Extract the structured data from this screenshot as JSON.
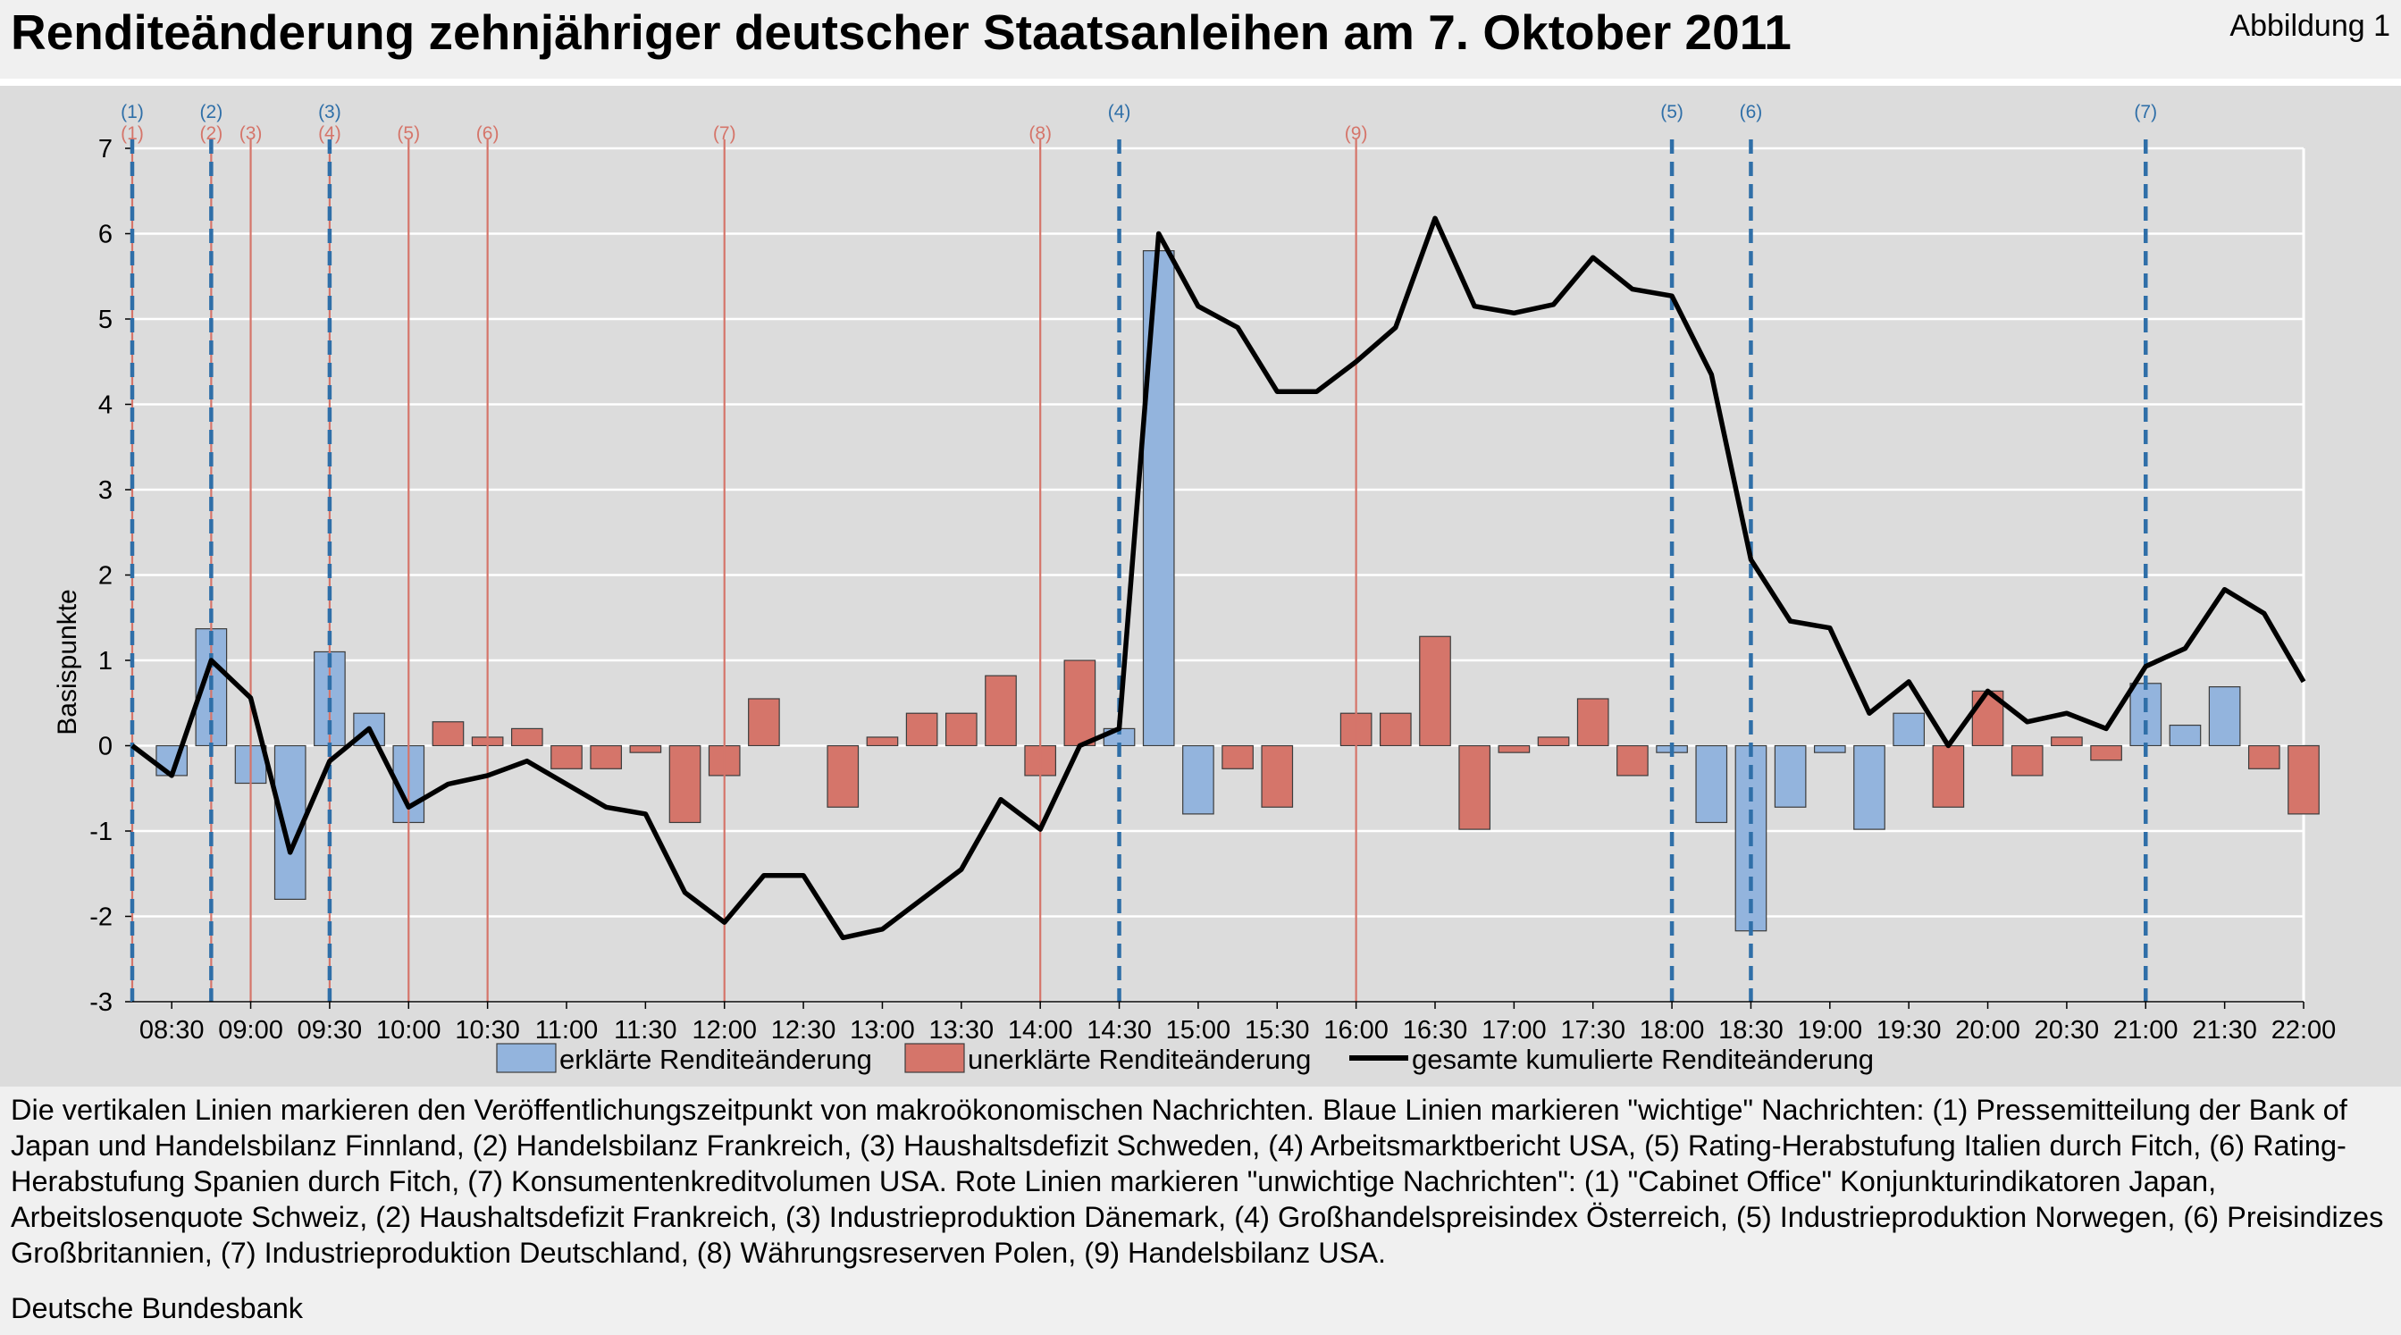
{
  "header": {
    "title": "Renditeänderung zehnjähriger deutscher Staatsanleihen am 7. Oktober 2011",
    "figure_label": "Abbildung 1"
  },
  "chart_data": {
    "type": "bar",
    "title": "",
    "xlabel": "",
    "ylabel": "Basispunkte",
    "ylim": [
      -3,
      7
    ],
    "yticks": [
      "-3",
      "-2",
      "-1",
      "0",
      "1",
      "2",
      "3",
      "4",
      "5",
      "6",
      "7"
    ],
    "grid": true,
    "legend_position": "bottom",
    "x_tick_labels": [
      "08:30",
      "09:00",
      "09:30",
      "10:00",
      "10:30",
      "11:00",
      "11:30",
      "12:00",
      "12:30",
      "13:00",
      "13:30",
      "14:00",
      "14:30",
      "15:00",
      "15:30",
      "16:00",
      "16:30",
      "17:00",
      "17:30",
      "18:00",
      "18:30",
      "19:00",
      "19:30",
      "20:00",
      "20:30",
      "21:00",
      "21:30",
      "22:00"
    ],
    "x": [
      "08:15",
      "08:30",
      "08:45",
      "09:00",
      "09:15",
      "09:30",
      "09:45",
      "10:00",
      "10:15",
      "10:30",
      "10:45",
      "11:00",
      "11:15",
      "11:30",
      "11:45",
      "12:00",
      "12:15",
      "12:30",
      "12:45",
      "13:00",
      "13:15",
      "13:30",
      "13:45",
      "14:00",
      "14:15",
      "14:30",
      "14:45",
      "15:00",
      "15:15",
      "15:30",
      "15:45",
      "16:00",
      "16:15",
      "16:30",
      "16:45",
      "17:00",
      "17:15",
      "17:30",
      "17:45",
      "18:00",
      "18:15",
      "18:30",
      "18:45",
      "19:00",
      "19:15",
      "19:30",
      "19:45",
      "20:00",
      "20:15",
      "20:30",
      "20:45",
      "21:00",
      "21:15",
      "21:30",
      "21:45",
      "22:00"
    ],
    "series": [
      {
        "name": "erklärte Renditeänderung",
        "color": "#93b4dd",
        "values": [
          0,
          -0.35,
          1.37,
          -0.44,
          -1.8,
          1.1,
          0.38,
          -0.9,
          0,
          0,
          0,
          0,
          0,
          0,
          0,
          0,
          0,
          0,
          0,
          0,
          0,
          0,
          0,
          0,
          0,
          0.2,
          5.8,
          -0.8,
          0,
          0,
          0,
          0,
          0,
          0,
          0,
          0,
          0,
          0,
          0,
          -0.08,
          -0.9,
          -2.17,
          -0.72,
          -0.08,
          -0.98,
          0.38,
          0,
          0,
          0,
          0,
          0,
          0.73,
          0.24,
          0.69,
          0,
          0
        ]
      },
      {
        "name": "unerklärte Renditeänderung",
        "color": "#d5756a",
        "values": [
          0,
          0,
          0,
          0,
          0,
          0,
          0,
          0,
          0.28,
          0.1,
          0.2,
          -0.27,
          -0.27,
          -0.08,
          -0.9,
          -0.35,
          0.55,
          0,
          -0.72,
          0.1,
          0.38,
          0.38,
          0.82,
          -0.35,
          1.0,
          0,
          0,
          0,
          -0.27,
          -0.72,
          0,
          0.38,
          0.38,
          1.28,
          -0.98,
          -0.08,
          0.1,
          0.55,
          -0.35,
          0,
          0,
          0,
          0,
          0,
          0,
          0,
          -0.72,
          0.64,
          -0.35,
          0.1,
          -0.17,
          0,
          0,
          0,
          -0.27,
          -0.8
        ]
      },
      {
        "name": "gesamte kumulierte Renditeänderung",
        "color": "#000000",
        "values": [
          0,
          -0.35,
          1.0,
          0.56,
          -1.25,
          -0.18,
          0.2,
          -0.72,
          -0.45,
          -0.35,
          -0.18,
          -0.45,
          -0.72,
          -0.8,
          -1.72,
          -2.07,
          -1.52,
          -1.52,
          -2.25,
          -2.15,
          -1.8,
          -1.45,
          -0.63,
          -0.98,
          0,
          0.2,
          6.0,
          5.15,
          4.9,
          4.15,
          4.15,
          4.5,
          4.9,
          6.18,
          5.15,
          5.07,
          5.17,
          5.72,
          5.35,
          5.27,
          4.35,
          2.18,
          1.46,
          1.38,
          0.38,
          0.75,
          0,
          0.64,
          0.28,
          0.38,
          0.2,
          0.93,
          1.14,
          1.83,
          1.55,
          0.75
        ]
      }
    ],
    "news_lines": {
      "blue": [
        {
          "label": "(1)",
          "time": "08:15"
        },
        {
          "label": "(2)",
          "time": "08:45"
        },
        {
          "label": "(3)",
          "time": "09:30"
        },
        {
          "label": "(4)",
          "time": "14:30"
        },
        {
          "label": "(5)",
          "time": "18:00"
        },
        {
          "label": "(6)",
          "time": "18:30"
        },
        {
          "label": "(7)",
          "time": "21:00"
        }
      ],
      "red": [
        {
          "label": "(1)",
          "time": "08:15"
        },
        {
          "label": "(2)",
          "time": "08:45"
        },
        {
          "label": "(3)",
          "time": "09:00"
        },
        {
          "label": "(4)",
          "time": "09:30"
        },
        {
          "label": "(5)",
          "time": "10:00"
        },
        {
          "label": "(6)",
          "time": "10:30"
        },
        {
          "label": "(7)",
          "time": "12:00"
        },
        {
          "label": "(8)",
          "time": "14:00"
        },
        {
          "label": "(9)",
          "time": "16:00"
        }
      ]
    }
  },
  "caption": {
    "text": "Die vertikalen Linien markieren den Veröffentlichungszeitpunkt von makroökonomischen Nachrichten. Blaue Linien markieren \"wichtige\" Nachrichten: (1) Pressemitteilung der Bank of Japan und Handelsbilanz Finnland, (2) Handelsbilanz Frankreich, (3) Haushaltsdefizit Schweden, (4) Arbeitsmarktbericht USA, (5) Rating-Herabstufung Italien durch Fitch, (6) Rating-Herabstufung Spanien durch Fitch, (7) Konsumentenkreditvolumen USA. Rote Linien markieren \"unwichtige Nachrichten\": (1) \"Cabinet Office\" Konjunkturindikatoren Japan, Arbeitslosenquote Schweiz, (2) Haushaltsdefizit Frankreich, (3) Industrieproduktion Dänemark, (4) Großhandelspreisindex Österreich, (5) Industrieproduktion Norwegen, (6) Preisindizes Großbritannien, (7) Industrieproduktion Deutschland, (8) Währungsreserven Polen, (9) Handelsbilanz USA.",
    "source": "Deutsche Bundesbank"
  },
  "colors": {
    "chart_background": "#dcdcdc",
    "page_background": "#f0f0f0",
    "blue_line": "#2f6fa8",
    "red_line": "#d5756a",
    "blue_label": "#2f6fa8",
    "red_label": "#d5756a"
  }
}
